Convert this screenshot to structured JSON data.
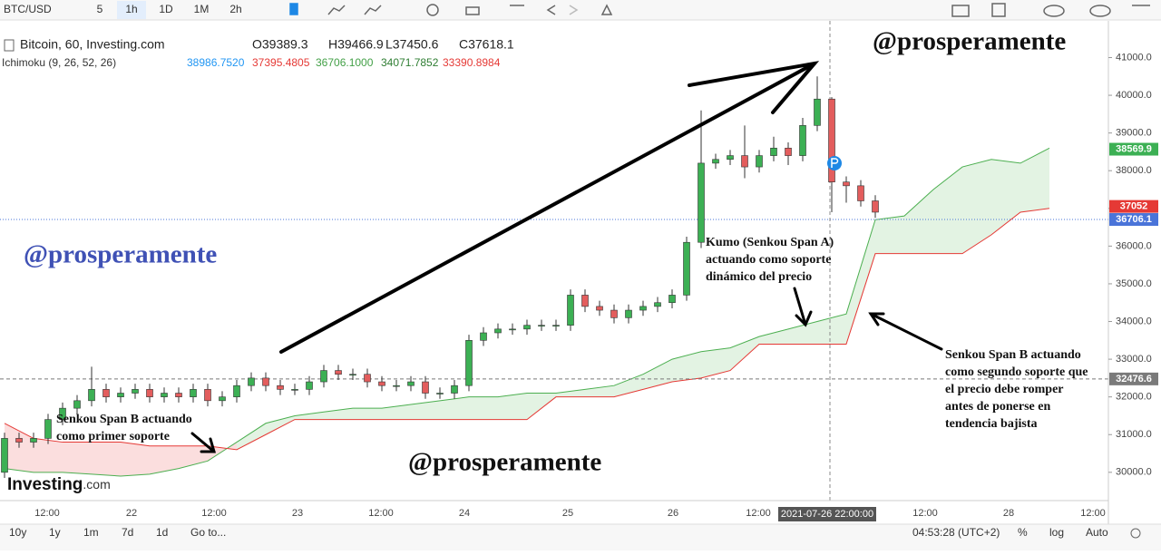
{
  "toolbar": {
    "symbol": "BTC/USD",
    "intervals": [
      "5",
      "1h",
      "1D",
      "1M",
      "2h"
    ]
  },
  "chart_data": {
    "type": "candlestick",
    "legend_title": "Bitcoin, 60, Investing.com",
    "ohlc_legend": [
      "O39389.3",
      "H39466.9",
      "L37450.6",
      "C37618.1"
    ],
    "indicator": {
      "name": "Ichimoku (9, 26, 52, 26)",
      "values": [
        "38986.7520",
        "37395.4805",
        "36706.1000",
        "34071.7852",
        "33390.8984"
      ],
      "colors": [
        "#2196f3",
        "#e53935",
        "#43a047",
        "#2e7d32",
        "#e53935"
      ]
    },
    "up_color": "#3cb054",
    "down_color": "#e35d5d",
    "open": [
      30000,
      30900,
      30800,
      30900,
      31400,
      31700,
      31900,
      32200,
      32000,
      32100,
      32200,
      32000,
      32100,
      32000,
      32200,
      31900,
      32000,
      32300,
      32500,
      32300,
      32200,
      32200,
      32400,
      32700,
      32600,
      32600,
      32400,
      32300,
      32300,
      32400,
      32100,
      32100,
      32300,
      33500,
      33700,
      33800,
      33800,
      33900,
      33900,
      33900,
      34700,
      34400,
      34300,
      34100,
      34300,
      34400,
      34500,
      34700,
      36100,
      38200,
      38300,
      38400,
      38100,
      38400,
      38600,
      38400,
      39200,
      39900,
      37700,
      37600,
      37200
    ],
    "high": [
      31050,
      31050,
      31050,
      31550,
      31850,
      32050,
      32800,
      32350,
      32250,
      32350,
      32350,
      32250,
      32250,
      32350,
      32350,
      32150,
      32450,
      32650,
      32650,
      32450,
      32350,
      32550,
      32850,
      32850,
      32750,
      32750,
      32550,
      32450,
      32550,
      32550,
      32250,
      32450,
      33650,
      33850,
      33950,
      33950,
      34050,
      34050,
      34050,
      34850,
      34850,
      34550,
      34450,
      34450,
      34550,
      34650,
      34850,
      36250,
      39600,
      38450,
      38550,
      39200,
      38550,
      38900,
      38750,
      39400,
      40500,
      39950,
      37850,
      37750,
      37350
    ],
    "low": [
      29850,
      30650,
      30650,
      30750,
      31250,
      31550,
      31750,
      31850,
      31850,
      31950,
      31850,
      31850,
      31850,
      31850,
      31750,
      31750,
      31850,
      32150,
      32150,
      32050,
      32050,
      32050,
      32250,
      32450,
      32450,
      32250,
      32150,
      32150,
      32150,
      31950,
      31950,
      31950,
      32150,
      33350,
      33550,
      33650,
      33650,
      33750,
      33750,
      33750,
      34250,
      34150,
      33950,
      33950,
      34150,
      34250,
      34350,
      34550,
      35950,
      38050,
      38150,
      37800,
      37950,
      38250,
      38150,
      38250,
      39050,
      36900,
      37150,
      37050,
      36750
    ],
    "close": [
      30900,
      30800,
      30900,
      31400,
      31700,
      31900,
      32200,
      32000,
      32100,
      32200,
      32000,
      32100,
      32000,
      32200,
      31900,
      32000,
      32300,
      32500,
      32300,
      32200,
      32200,
      32400,
      32700,
      32600,
      32600,
      32400,
      32300,
      32300,
      32400,
      32100,
      32100,
      32300,
      33500,
      33700,
      33800,
      33800,
      33900,
      33900,
      33900,
      34700,
      34400,
      34300,
      34100,
      34300,
      34400,
      34500,
      34700,
      36100,
      38200,
      38300,
      38400,
      38100,
      38400,
      38600,
      38400,
      39200,
      39900,
      37700,
      37600,
      37200,
      36900
    ],
    "cloud": {
      "span_a": {
        "color": "#4caf50",
        "values": [
          30100,
          30000,
          30000,
          29950,
          29900,
          29950,
          30100,
          30300,
          30800,
          31300,
          31500,
          31600,
          31700,
          31700,
          31800,
          31900,
          32000,
          32000,
          32100,
          32100,
          32200,
          32300,
          32600,
          33000,
          33200,
          33300,
          33600,
          33800,
          34000,
          34200,
          36700,
          36800,
          37500,
          38100,
          38300,
          38200,
          38600
        ]
      },
      "span_b": {
        "color": "#e53935",
        "values": [
          31300,
          30900,
          30800,
          30800,
          30800,
          30700,
          30700,
          30700,
          30600,
          31000,
          31400,
          31400,
          31400,
          31400,
          31400,
          31400,
          31400,
          31400,
          31400,
          32000,
          32000,
          32000,
          32200,
          32400,
          32500,
          32700,
          33400,
          33400,
          33400,
          33400,
          35800,
          35800,
          35800,
          35800,
          36300,
          36900,
          37000
        ]
      },
      "up_fill": "#e3f3e3",
      "down_fill": "#fbdede"
    },
    "ylim": [
      29250,
      41950
    ],
    "yticks": [
      {
        "value": 30000,
        "label": "30000.0"
      },
      {
        "value": 31000,
        "label": "31000.0"
      },
      {
        "value": 32000,
        "label": "32000.0"
      },
      {
        "value": 33000,
        "label": "33000.0"
      },
      {
        "value": 34000,
        "label": "34000.0"
      },
      {
        "value": 35000,
        "label": "35000.0"
      },
      {
        "value": 36000,
        "label": "36000.0"
      },
      {
        "value": 37000,
        "label": "37000.0"
      },
      {
        "value": 38000,
        "label": "38000.0"
      },
      {
        "value": 39000,
        "label": "39000.0"
      },
      {
        "value": 40000,
        "label": "40000.0"
      },
      {
        "value": 41000,
        "label": "41000.0"
      }
    ],
    "x_tick_labels": [
      "12:00",
      "22",
      "12:00",
      "23",
      "12:00",
      "24",
      "25",
      "26",
      "12:00",
      "12:00",
      "28",
      "12:00"
    ],
    "crosshair_label": "2021-07-26 22:00:00",
    "price_labels": [
      {
        "value": 38569.9,
        "color": "#3cb054"
      },
      {
        "value": 37052.0,
        "color": "#e53935"
      },
      {
        "value": 36706.1,
        "color": "#4a74d9"
      },
      {
        "value": 32476.6,
        "color": "#7a7a7a"
      }
    ],
    "annotations": [
      {
        "lines": [
          "Senkou Span B actuando",
          "como primer soporte"
        ]
      },
      {
        "lines": [
          "Kumo (Senkou Span A)",
          "actuando como soporte",
          "dinámico del precio"
        ]
      },
      {
        "lines": [
          "Senkou Span B actuando",
          "como segundo soporte que",
          "el precio debe romper",
          "antes de ponerse en",
          "tendencia bajista"
        ]
      }
    ],
    "watermarks": [
      "@prosperamente",
      "@prosperamente",
      "@prosperamente"
    ],
    "logo": [
      "Investing",
      ".com"
    ]
  },
  "footer": {
    "ranges": [
      "10y",
      "1y",
      "1m",
      "7d",
      "1d",
      "Go to..."
    ],
    "clock": "04:53:28 (UTC+2)",
    "options": [
      "%",
      "log",
      "Auto"
    ]
  }
}
